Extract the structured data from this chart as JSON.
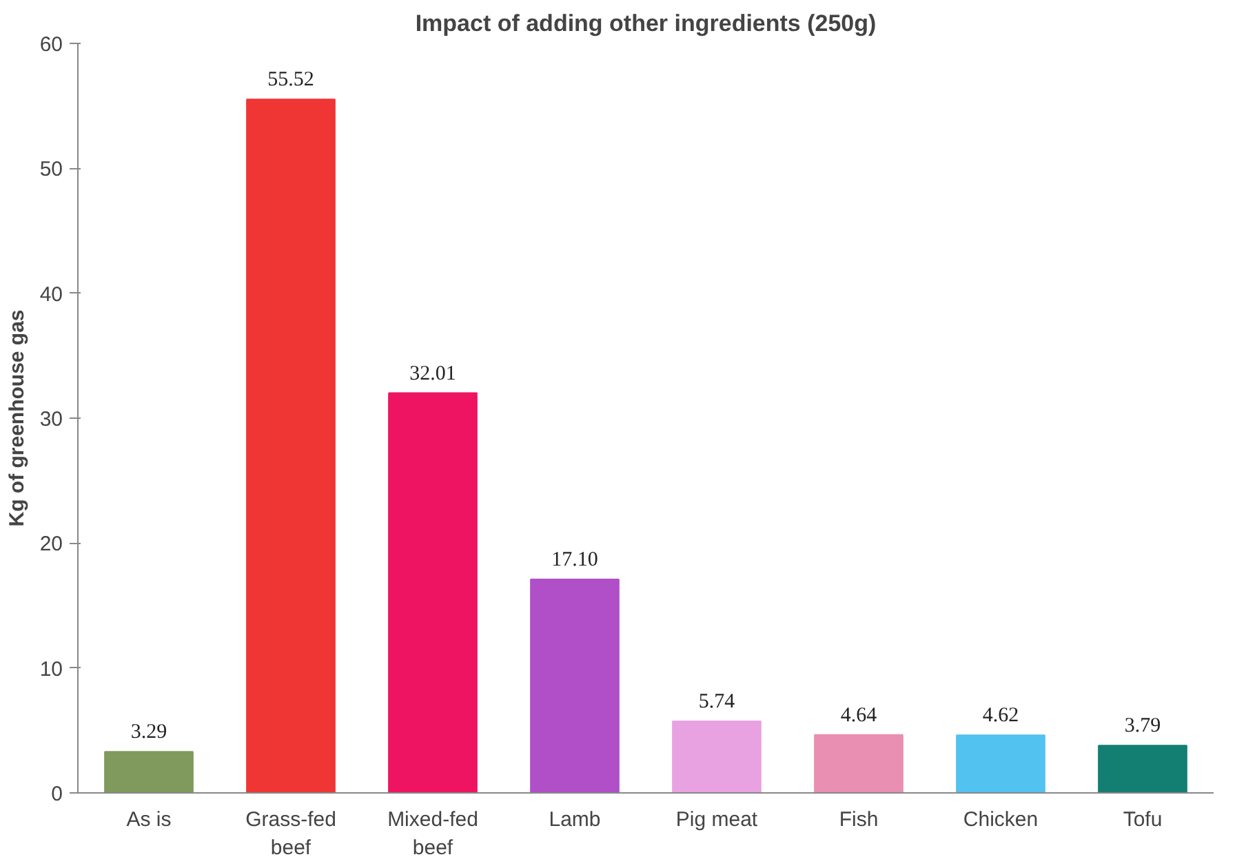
{
  "chart_data": {
    "type": "bar",
    "title": "Impact of adding other ingredients (250g)",
    "ylabel": "Kg of greenhouse gas",
    "categories": [
      "As is",
      "Grass-fed beef",
      "Mixed-fed beef",
      "Lamb",
      "Pig meat",
      "Fish",
      "Chicken",
      "Tofu"
    ],
    "values": [
      3.29,
      55.52,
      32.01,
      17.1,
      5.74,
      4.64,
      4.62,
      3.79
    ],
    "value_labels": [
      "3.29",
      "55.52",
      "32.01",
      "17.10",
      "5.74",
      "4.64",
      "4.62",
      "3.79"
    ],
    "colors": [
      "#7f9a5c",
      "#f03535",
      "#ee1462",
      "#b04fc8",
      "#e8a2e2",
      "#e98fb2",
      "#52c2f0",
      "#137f72"
    ],
    "ylim": [
      0,
      60
    ],
    "yticks": [
      0,
      10,
      20,
      30,
      40,
      50,
      60
    ],
    "grid": false
  }
}
